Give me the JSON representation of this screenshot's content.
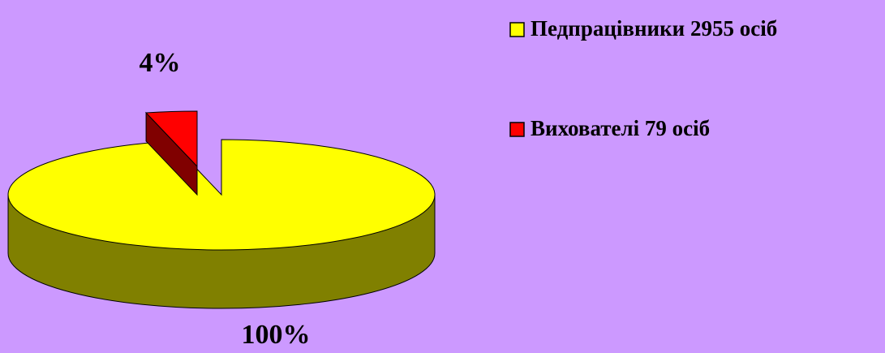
{
  "chart_data": {
    "type": "pie",
    "categories": [
      "Педпрацівники 2955 осіб",
      "Вихователі 79 осіб"
    ],
    "values": [
      100,
      4
    ],
    "value_labels": [
      "100%",
      "4%"
    ],
    "colors": [
      "#ffff00",
      "#ff0000"
    ],
    "legend": "right"
  }
}
